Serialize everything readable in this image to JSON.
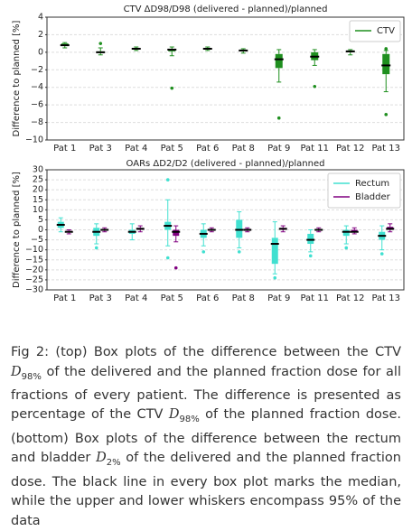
{
  "chart_data": [
    {
      "type": "box",
      "title": "CTV ΔD98/D98 (delivered - planned)/planned",
      "y_label": "Difference to planned [%]",
      "categories": [
        "Pat 1",
        "Pat 3",
        "Pat 4",
        "Pat 5",
        "Pat 6",
        "Pat 8",
        "Pat 9",
        "Pat 11",
        "Pat 12",
        "Pat 13"
      ],
      "ylim": [
        -10,
        4
      ],
      "yticks": [
        {
          "value": -10,
          "label": "−10"
        },
        {
          "value": -8,
          "label": "−8"
        },
        {
          "value": -6,
          "label": "−6"
        },
        {
          "value": -4,
          "label": "−4"
        },
        {
          "value": -2,
          "label": "−2"
        },
        0,
        2,
        4
      ],
      "grid": true,
      "legend": "upper right",
      "series": [
        {
          "name": "CTV",
          "color": "#1f8f1f",
          "whislo": [
            0.5,
            -0.3,
            0.2,
            -0.4,
            0.2,
            -0.1,
            -3.4,
            -1.5,
            -0.3,
            -4.5
          ],
          "q1": [
            0.7,
            -0.1,
            0.3,
            0.1,
            0.3,
            0.1,
            -1.8,
            -0.9,
            0,
            -2.5
          ],
          "med": [
            0.8,
            0,
            0.4,
            0.3,
            0.4,
            0.2,
            -0.8,
            -0.5,
            0.1,
            -1.5
          ],
          "q3": [
            1.0,
            0.1,
            0.5,
            0.4,
            0.5,
            0.3,
            -0.2,
            0,
            0.2,
            -0.2
          ],
          "whishi": [
            1.1,
            0.5,
            0.6,
            0.6,
            0.6,
            0.4,
            0.3,
            0.3,
            0.3,
            0.2
          ],
          "fliers": [
            [],
            [
              1.0
            ],
            [],
            [
              -4.1
            ],
            [],
            [],
            [
              -7.5
            ],
            [
              -3.9
            ],
            [],
            [
              -7.1,
              0.4
            ]
          ]
        }
      ]
    },
    {
      "type": "box",
      "title": "OARs ΔD2/D2 (delivered - planned)/planned",
      "y_label": "Difference to planned [%]",
      "categories": [
        "Pat 1",
        "Pat 3",
        "Pat 4",
        "Pat 5",
        "Pat 6",
        "Pat 8",
        "Pat 9",
        "Pat 11",
        "Pat 12",
        "Pat 13"
      ],
      "ylim": [
        -30,
        30
      ],
      "yticks": [
        {
          "value": -30,
          "label": "−30"
        },
        {
          "value": -25,
          "label": "−25"
        },
        {
          "value": -20,
          "label": "−20"
        },
        {
          "value": -15,
          "label": "−15"
        },
        {
          "value": -10,
          "label": "−10"
        },
        {
          "value": -5,
          "label": "−5"
        },
        0,
        5,
        10,
        15,
        20,
        25,
        30
      ],
      "grid": true,
      "legend": "upper right",
      "series": [
        {
          "name": "Rectum",
          "color": "#40e0d0",
          "whislo": [
            -1,
            -7,
            -5,
            -8,
            -8,
            -9,
            -22,
            -11,
            -7,
            -10
          ],
          "q1": [
            1,
            -3,
            -2,
            0,
            -4,
            -4,
            -17,
            -7,
            -3,
            -5
          ],
          "med": [
            2.5,
            -1,
            -1,
            2,
            -2,
            0,
            -7,
            -5,
            -1,
            -3
          ],
          "q3": [
            4,
            1,
            0,
            4,
            0,
            5,
            -4,
            -2,
            0,
            -1
          ],
          "whishi": [
            6,
            3,
            3,
            15,
            3,
            9,
            4,
            0,
            2,
            2
          ],
          "fliers": [
            [],
            [
              -9
            ],
            [],
            [
              25,
              -14
            ],
            [
              -11
            ],
            [
              -11
            ],
            [
              -24
            ],
            [
              -13
            ],
            [
              -9
            ],
            [
              -12
            ]
          ]
        },
        {
          "name": "Bladder",
          "color": "#800080",
          "whislo": [
            -2,
            -1,
            -1,
            -6,
            -1,
            -1,
            -1,
            -1,
            -2,
            -1
          ],
          "q1": [
            -1,
            -0.5,
            0,
            -3,
            -0.5,
            -0.5,
            0,
            -0.5,
            -1,
            0
          ],
          "med": [
            -1,
            0,
            0.5,
            -1,
            0,
            0,
            0.5,
            0,
            -1,
            0.5
          ],
          "q3": [
            -0.5,
            0.3,
            1,
            0,
            0.3,
            0.5,
            1,
            0.3,
            0,
            1.5
          ],
          "whishi": [
            0,
            1,
            2,
            2,
            1,
            1,
            2,
            1,
            1,
            3
          ],
          "fliers": [
            [],
            [],
            [],
            [
              -19
            ],
            [],
            [],
            [],
            [],
            [],
            []
          ]
        }
      ]
    }
  ],
  "caption": [
    "Fig 2: (top) Box plots of the difference between the CTV",
    "D",
    "98%",
    "of the delivered and the planned fraction dose for all fractions of every patient. The difference is presented as percentage of the CTV",
    "D",
    "98%",
    "of the planned fraction dose. (bottom) Box plots of the difference between the rectum and bladder",
    "D",
    "2%",
    "of the delivered and the planned fraction dose. The black line in every box plot marks the median, while the upper and lower whiskers encompass 95% of the data"
  ]
}
